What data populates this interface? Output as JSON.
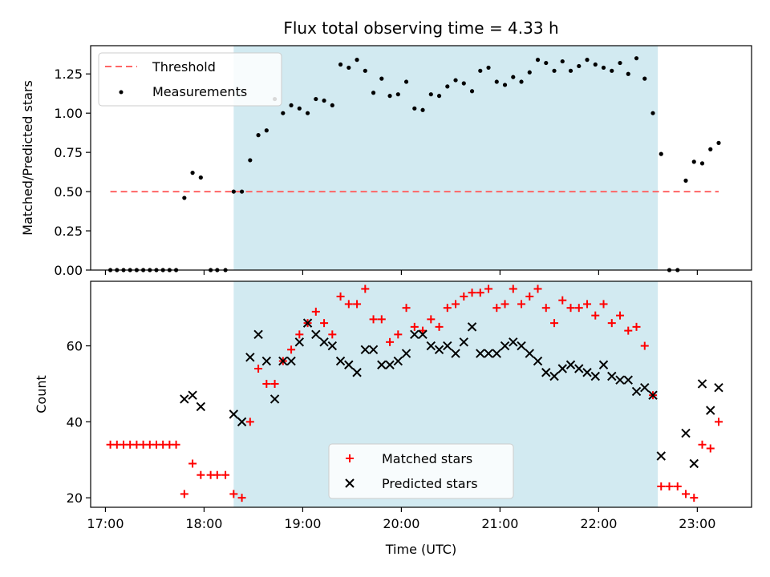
{
  "chart_data": [
    {
      "type": "scatter",
      "title": "Flux total observing time = 4.33 h",
      "xlabel": "",
      "ylabel": "Matched/Predicted stars",
      "ylim": [
        0,
        1.43
      ],
      "xlim": [
        "16:51",
        "23:33"
      ],
      "yticks": [
        0.0,
        0.25,
        0.5,
        0.75,
        1.0,
        1.25
      ],
      "ytick_labels": [
        "0.00",
        "0.25",
        "0.50",
        "0.75",
        "1.00",
        "1.25"
      ],
      "shaded_span": {
        "start": "18:18",
        "end": "22:36",
        "color": "#add8e6"
      },
      "legend": {
        "location": "upper left",
        "entries": [
          "Threshold",
          "Measurements"
        ]
      },
      "threshold": {
        "name": "Threshold",
        "value": 0.5,
        "x_start": "17:03",
        "x_end": "23:13",
        "color": "#ff6666",
        "style": "dashed"
      },
      "series": [
        {
          "name": "Measurements",
          "color": "#000000",
          "marker": "dot",
          "points": [
            [
              "17:03",
              0.0
            ],
            [
              "17:07",
              0.0
            ],
            [
              "17:11",
              0.0
            ],
            [
              "17:15",
              0.0
            ],
            [
              "17:19",
              0.0
            ],
            [
              "17:23",
              0.0
            ],
            [
              "17:27",
              0.0
            ],
            [
              "17:31",
              0.0
            ],
            [
              "17:35",
              0.0
            ],
            [
              "17:39",
              0.0
            ],
            [
              "17:43",
              0.0
            ],
            [
              "17:48",
              0.46
            ],
            [
              "17:53",
              0.62
            ],
            [
              "17:58",
              0.59
            ],
            [
              "18:04",
              0.0
            ],
            [
              "18:08",
              0.0
            ],
            [
              "18:13",
              0.0
            ],
            [
              "18:18",
              0.5
            ],
            [
              "18:23",
              0.5
            ],
            [
              "18:28",
              0.7
            ],
            [
              "18:33",
              0.86
            ],
            [
              "18:38",
              0.89
            ],
            [
              "18:43",
              1.09
            ],
            [
              "18:48",
              1.0
            ],
            [
              "18:53",
              1.05
            ],
            [
              "18:58",
              1.03
            ],
            [
              "19:03",
              1.0
            ],
            [
              "19:08",
              1.09
            ],
            [
              "19:13",
              1.08
            ],
            [
              "19:18",
              1.05
            ],
            [
              "19:23",
              1.31
            ],
            [
              "19:28",
              1.29
            ],
            [
              "19:33",
              1.34
            ],
            [
              "19:38",
              1.27
            ],
            [
              "19:43",
              1.13
            ],
            [
              "19:48",
              1.22
            ],
            [
              "19:53",
              1.11
            ],
            [
              "19:58",
              1.12
            ],
            [
              "20:03",
              1.2
            ],
            [
              "20:08",
              1.03
            ],
            [
              "20:13",
              1.02
            ],
            [
              "20:18",
              1.12
            ],
            [
              "20:23",
              1.11
            ],
            [
              "20:28",
              1.17
            ],
            [
              "20:33",
              1.21
            ],
            [
              "20:38",
              1.19
            ],
            [
              "20:43",
              1.14
            ],
            [
              "20:48",
              1.27
            ],
            [
              "20:53",
              1.29
            ],
            [
              "20:58",
              1.2
            ],
            [
              "21:03",
              1.18
            ],
            [
              "21:08",
              1.23
            ],
            [
              "21:13",
              1.2
            ],
            [
              "21:18",
              1.26
            ],
            [
              "21:23",
              1.34
            ],
            [
              "21:28",
              1.32
            ],
            [
              "21:33",
              1.27
            ],
            [
              "21:38",
              1.33
            ],
            [
              "21:43",
              1.27
            ],
            [
              "21:48",
              1.3
            ],
            [
              "21:53",
              1.34
            ],
            [
              "21:58",
              1.31
            ],
            [
              "22:03",
              1.29
            ],
            [
              "22:08",
              1.27
            ],
            [
              "22:13",
              1.32
            ],
            [
              "22:18",
              1.25
            ],
            [
              "22:23",
              1.35
            ],
            [
              "22:28",
              1.22
            ],
            [
              "22:33",
              1.0
            ],
            [
              "22:38",
              0.74
            ],
            [
              "22:43",
              0.0
            ],
            [
              "22:48",
              0.0
            ],
            [
              "22:53",
              0.57
            ],
            [
              "22:58",
              0.69
            ],
            [
              "23:03",
              0.68
            ],
            [
              "23:08",
              0.77
            ],
            [
              "23:13",
              0.81
            ]
          ]
        }
      ]
    },
    {
      "type": "scatter",
      "title": "",
      "xlabel": "Time (UTC)",
      "ylabel": "Count",
      "ylim": [
        17.5,
        77
      ],
      "xlim": [
        "16:51",
        "23:33"
      ],
      "yticks": [
        20,
        40,
        60
      ],
      "ytick_labels": [
        "20",
        "40",
        "60"
      ],
      "xticks": [
        "17:00",
        "18:00",
        "19:00",
        "20:00",
        "21:00",
        "22:00",
        "23:00"
      ],
      "xtick_labels": [
        "17:00",
        "18:00",
        "19:00",
        "20:00",
        "21:00",
        "22:00",
        "23:00"
      ],
      "shaded_span": {
        "start": "18:18",
        "end": "22:36",
        "color": "#add8e6"
      },
      "legend": {
        "location": "lower center",
        "entries": [
          "Matched stars",
          "Predicted stars"
        ]
      },
      "series": [
        {
          "name": "Matched stars",
          "color": "#ff0000",
          "marker": "plus",
          "points": [
            [
              "17:03",
              34
            ],
            [
              "17:07",
              34
            ],
            [
              "17:11",
              34
            ],
            [
              "17:15",
              34
            ],
            [
              "17:19",
              34
            ],
            [
              "17:23",
              34
            ],
            [
              "17:27",
              34
            ],
            [
              "17:31",
              34
            ],
            [
              "17:35",
              34
            ],
            [
              "17:39",
              34
            ],
            [
              "17:43",
              34
            ],
            [
              "17:48",
              21
            ],
            [
              "17:53",
              29
            ],
            [
              "17:58",
              26
            ],
            [
              "18:04",
              26
            ],
            [
              "18:08",
              26
            ],
            [
              "18:13",
              26
            ],
            [
              "18:18",
              21
            ],
            [
              "18:23",
              20
            ],
            [
              "18:28",
              40
            ],
            [
              "18:33",
              54
            ],
            [
              "18:38",
              50
            ],
            [
              "18:43",
              50
            ],
            [
              "18:48",
              56
            ],
            [
              "18:53",
              59
            ],
            [
              "18:58",
              63
            ],
            [
              "19:03",
              66
            ],
            [
              "19:08",
              69
            ],
            [
              "19:13",
              66
            ],
            [
              "19:18",
              63
            ],
            [
              "19:23",
              73
            ],
            [
              "19:28",
              71
            ],
            [
              "19:33",
              71
            ],
            [
              "19:38",
              75
            ],
            [
              "19:43",
              67
            ],
            [
              "19:48",
              67
            ],
            [
              "19:53",
              61
            ],
            [
              "19:58",
              63
            ],
            [
              "20:03",
              70
            ],
            [
              "20:08",
              65
            ],
            [
              "20:13",
              64
            ],
            [
              "20:18",
              67
            ],
            [
              "20:23",
              65
            ],
            [
              "20:28",
              70
            ],
            [
              "20:33",
              71
            ],
            [
              "20:38",
              73
            ],
            [
              "20:43",
              74
            ],
            [
              "20:48",
              74
            ],
            [
              "20:53",
              75
            ],
            [
              "20:58",
              70
            ],
            [
              "21:03",
              71
            ],
            [
              "21:08",
              75
            ],
            [
              "21:13",
              71
            ],
            [
              "21:18",
              73
            ],
            [
              "21:23",
              75
            ],
            [
              "21:28",
              70
            ],
            [
              "21:33",
              66
            ],
            [
              "21:38",
              72
            ],
            [
              "21:43",
              70
            ],
            [
              "21:48",
              70
            ],
            [
              "21:53",
              71
            ],
            [
              "21:58",
              68
            ],
            [
              "22:03",
              71
            ],
            [
              "22:08",
              66
            ],
            [
              "22:13",
              68
            ],
            [
              "22:18",
              64
            ],
            [
              "22:23",
              65
            ],
            [
              "22:28",
              60
            ],
            [
              "22:33",
              47
            ],
            [
              "22:38",
              23
            ],
            [
              "22:43",
              23
            ],
            [
              "22:48",
              23
            ],
            [
              "22:53",
              21
            ],
            [
              "22:58",
              20
            ],
            [
              "23:03",
              34
            ],
            [
              "23:08",
              33
            ],
            [
              "23:13",
              40
            ]
          ]
        },
        {
          "name": "Predicted stars",
          "color": "#000000",
          "marker": "x",
          "points": [
            [
              "17:48",
              46
            ],
            [
              "17:53",
              47
            ],
            [
              "17:58",
              44
            ],
            [
              "18:18",
              42
            ],
            [
              "18:23",
              40
            ],
            [
              "18:28",
              57
            ],
            [
              "18:33",
              63
            ],
            [
              "18:38",
              56
            ],
            [
              "18:43",
              46
            ],
            [
              "18:48",
              56
            ],
            [
              "18:53",
              56
            ],
            [
              "18:58",
              61
            ],
            [
              "19:03",
              66
            ],
            [
              "19:08",
              63
            ],
            [
              "19:13",
              61
            ],
            [
              "19:18",
              60
            ],
            [
              "19:23",
              56
            ],
            [
              "19:28",
              55
            ],
            [
              "19:33",
              53
            ],
            [
              "19:38",
              59
            ],
            [
              "19:43",
              59
            ],
            [
              "19:48",
              55
            ],
            [
              "19:53",
              55
            ],
            [
              "19:58",
              56
            ],
            [
              "20:03",
              58
            ],
            [
              "20:08",
              63
            ],
            [
              "20:13",
              63
            ],
            [
              "20:18",
              60
            ],
            [
              "20:23",
              59
            ],
            [
              "20:28",
              60
            ],
            [
              "20:33",
              58
            ],
            [
              "20:38",
              61
            ],
            [
              "20:43",
              65
            ],
            [
              "20:48",
              58
            ],
            [
              "20:53",
              58
            ],
            [
              "20:58",
              58
            ],
            [
              "21:03",
              60
            ],
            [
              "21:08",
              61
            ],
            [
              "21:13",
              60
            ],
            [
              "21:18",
              58
            ],
            [
              "21:23",
              56
            ],
            [
              "21:28",
              53
            ],
            [
              "21:33",
              52
            ],
            [
              "21:38",
              54
            ],
            [
              "21:43",
              55
            ],
            [
              "21:48",
              54
            ],
            [
              "21:53",
              53
            ],
            [
              "21:58",
              52
            ],
            [
              "22:03",
              55
            ],
            [
              "22:08",
              52
            ],
            [
              "22:13",
              51
            ],
            [
              "22:18",
              51
            ],
            [
              "22:23",
              48
            ],
            [
              "22:28",
              49
            ],
            [
              "22:33",
              47
            ],
            [
              "22:38",
              31
            ],
            [
              "22:53",
              37
            ],
            [
              "22:58",
              29
            ],
            [
              "23:03",
              50
            ],
            [
              "23:08",
              43
            ],
            [
              "23:13",
              49
            ]
          ]
        }
      ]
    }
  ]
}
